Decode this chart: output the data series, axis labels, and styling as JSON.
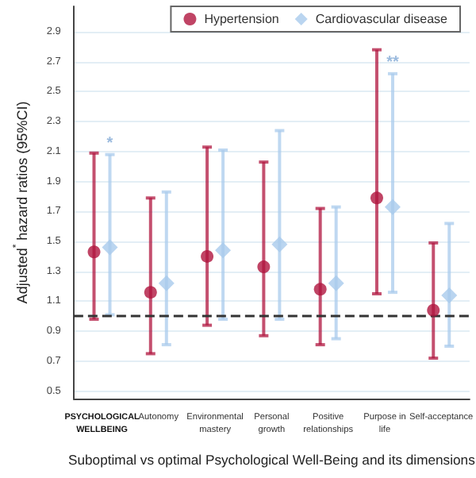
{
  "chart_data": {
    "type": "scatter",
    "ylabel": "Adjusted$^{*}$ hazard ratios (95%CI)",
    "xlabel": "Suboptimal vs optimal Psychological Well-Being and its dimensions",
    "categories": [
      "PSYCHOLOGICAL WELLBEING",
      "Autonomy",
      "Environmental mastery",
      "Personal growth",
      "Positive relationships",
      "Purpose in life",
      "Self-acceptance"
    ],
    "series": [
      {
        "name": "Hypertension",
        "color": "#b0153f",
        "marker": "circle",
        "values": [
          1.43,
          1.16,
          1.4,
          1.33,
          1.18,
          1.79,
          1.04
        ],
        "errors": [
          [
            0.98,
            2.09
          ],
          [
            0.75,
            1.79
          ],
          [
            0.94,
            2.13
          ],
          [
            0.87,
            2.03
          ],
          [
            0.81,
            1.72
          ],
          [
            1.15,
            2.78
          ],
          [
            0.72,
            1.49
          ]
        ]
      },
      {
        "name": "Cardiovascular disease",
        "color": "#a9cbec",
        "marker": "diamond",
        "values": [
          1.46,
          1.22,
          1.44,
          1.48,
          1.22,
          1.73,
          1.14
        ],
        "errors": [
          [
            1.01,
            2.08
          ],
          [
            0.81,
            1.83
          ],
          [
            0.98,
            2.11
          ],
          [
            0.98,
            2.24
          ],
          [
            0.85,
            1.73
          ],
          [
            1.16,
            2.62
          ],
          [
            0.8,
            1.62
          ]
        ]
      }
    ],
    "ylim": [
      0.45,
      3.07
    ],
    "yticks": [
      0.5,
      0.7,
      0.9,
      1.1,
      1.3,
      1.5,
      1.7,
      1.9,
      2.1,
      2.3,
      2.5,
      2.7,
      2.9
    ],
    "ref_lines": [
      {
        "axis": "y",
        "value": 1,
        "line_style": "dashed",
        "color": "#333333"
      }
    ],
    "annotations": [
      {
        "text": "*",
        "x": "PSYCHOLOGICAL WELLBEING",
        "y": 2.08
      },
      {
        "text": "**",
        "x": "Purpose in life",
        "y": 2.62
      }
    ],
    "grid": "y",
    "legend": "top right"
  }
}
